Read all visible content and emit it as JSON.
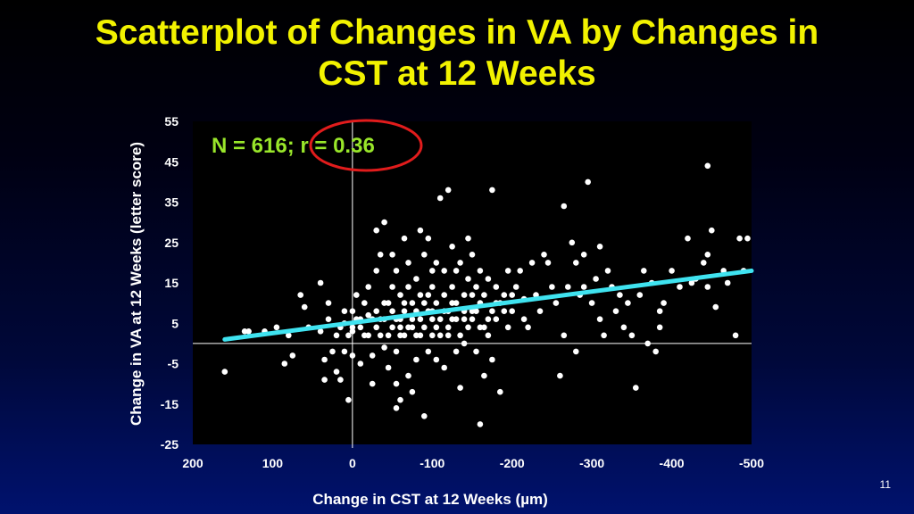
{
  "title": {
    "line1": "Scatterplot of Changes in VA by Changes in",
    "line2": "CST at 12 Weeks"
  },
  "page_number": "11",
  "colors": {
    "title": "#f2f200",
    "stat_text": "#99e62a",
    "points": "#ffffff",
    "trend_line": "#3fe3f0",
    "highlight_circle": "#e11c1c"
  },
  "chart_data": {
    "type": "scatter",
    "stat_text": "N = 616; r = 0.36",
    "highlighted_text": "r = 0.36",
    "xlabel": "Change in CST at 12 Weeks (µm)",
    "ylabel": "Change in VA at 12 Weeks (letter score)",
    "xlim": [
      200,
      -500
    ],
    "ylim": [
      -25,
      55
    ],
    "x_ticks": [
      "200",
      "100",
      "0",
      "-100",
      "-200",
      "-300",
      "-400",
      "-500"
    ],
    "y_ticks": [
      "55",
      "45",
      "35",
      "25",
      "15",
      "5",
      "-5",
      "-15",
      "-25"
    ],
    "grid": false,
    "trend_line": {
      "x": [
        160,
        -500
      ],
      "y": [
        1,
        18
      ]
    },
    "points": [
      [
        160,
        -7
      ],
      [
        135,
        3
      ],
      [
        130,
        3
      ],
      [
        110,
        3
      ],
      [
        95,
        4
      ],
      [
        85,
        -5
      ],
      [
        80,
        2
      ],
      [
        75,
        -3
      ],
      [
        65,
        12
      ],
      [
        60,
        9
      ],
      [
        55,
        4
      ],
      [
        40,
        3
      ],
      [
        40,
        15
      ],
      [
        35,
        -9
      ],
      [
        35,
        -4
      ],
      [
        30,
        10
      ],
      [
        30,
        6
      ],
      [
        25,
        -2
      ],
      [
        20,
        -7
      ],
      [
        15,
        -9
      ],
      [
        10,
        5
      ],
      [
        10,
        -2
      ],
      [
        5,
        -14
      ],
      [
        0,
        -3
      ],
      [
        0,
        3
      ],
      [
        0,
        8
      ],
      [
        -5,
        12
      ],
      [
        -10,
        6
      ],
      [
        -10,
        -5
      ],
      [
        -15,
        2
      ],
      [
        -20,
        7
      ],
      [
        -20,
        14
      ],
      [
        -25,
        -10
      ],
      [
        -25,
        -3
      ],
      [
        -30,
        18
      ],
      [
        -30,
        4
      ],
      [
        -30,
        28
      ],
      [
        -35,
        22
      ],
      [
        -35,
        6
      ],
      [
        -40,
        10
      ],
      [
        -40,
        -1
      ],
      [
        -40,
        30
      ],
      [
        -45,
        2
      ],
      [
        -45,
        -6
      ],
      [
        -50,
        14
      ],
      [
        -50,
        8
      ],
      [
        -50,
        22
      ],
      [
        -55,
        18
      ],
      [
        -55,
        -2
      ],
      [
        -55,
        -10
      ],
      [
        -55,
        -16
      ],
      [
        -60,
        6
      ],
      [
        -60,
        12
      ],
      [
        -60,
        -14
      ],
      [
        -60,
        4
      ],
      [
        -65,
        8
      ],
      [
        -65,
        26
      ],
      [
        -65,
        2
      ],
      [
        -70,
        20
      ],
      [
        -70,
        14
      ],
      [
        -70,
        -8
      ],
      [
        -75,
        4
      ],
      [
        -75,
        -12
      ],
      [
        -75,
        10
      ],
      [
        -80,
        16
      ],
      [
        -80,
        -4
      ],
      [
        -80,
        2
      ],
      [
        -85,
        6
      ],
      [
        -85,
        28
      ],
      [
        -85,
        12
      ],
      [
        -90,
        -18
      ],
      [
        -90,
        22
      ],
      [
        -90,
        4
      ],
      [
        -95,
        8
      ],
      [
        -95,
        -2
      ],
      [
        -95,
        26
      ],
      [
        -100,
        14
      ],
      [
        -100,
        18
      ],
      [
        -100,
        6
      ],
      [
        -105,
        20
      ],
      [
        -105,
        -4
      ],
      [
        -105,
        10
      ],
      [
        -110,
        36
      ],
      [
        -110,
        2
      ],
      [
        -115,
        12
      ],
      [
        -115,
        18
      ],
      [
        -115,
        -6
      ],
      [
        -120,
        38
      ],
      [
        -120,
        8
      ],
      [
        -120,
        4
      ],
      [
        -125,
        24
      ],
      [
        -125,
        14
      ],
      [
        -130,
        -2
      ],
      [
        -130,
        18
      ],
      [
        -130,
        6
      ],
      [
        -135,
        20
      ],
      [
        -135,
        -11
      ],
      [
        -140,
        12
      ],
      [
        -140,
        0
      ],
      [
        -145,
        26
      ],
      [
        -145,
        16
      ],
      [
        -145,
        4
      ],
      [
        -150,
        22
      ],
      [
        -150,
        8
      ],
      [
        -155,
        -2
      ],
      [
        -155,
        14
      ],
      [
        -160,
        18
      ],
      [
        -160,
        -20
      ],
      [
        -160,
        10
      ],
      [
        -165,
        12
      ],
      [
        -165,
        -8
      ],
      [
        -170,
        6
      ],
      [
        -170,
        16
      ],
      [
        -175,
        38
      ],
      [
        -175,
        -4
      ],
      [
        -180,
        10
      ],
      [
        -180,
        14
      ],
      [
        -185,
        -12
      ],
      [
        -190,
        12
      ],
      [
        -195,
        18
      ],
      [
        -200,
        8
      ],
      [
        -205,
        14
      ],
      [
        -210,
        18
      ],
      [
        -215,
        11
      ],
      [
        -220,
        4
      ],
      [
        -225,
        20
      ],
      [
        -230,
        12
      ],
      [
        -240,
        22
      ],
      [
        -245,
        20
      ],
      [
        -250,
        14
      ],
      [
        -255,
        10
      ],
      [
        -260,
        -8
      ],
      [
        -265,
        2
      ],
      [
        -265,
        34
      ],
      [
        -270,
        14
      ],
      [
        -275,
        25
      ],
      [
        -280,
        -2
      ],
      [
        -280,
        20
      ],
      [
        -285,
        12
      ],
      [
        -290,
        14
      ],
      [
        -290,
        22
      ],
      [
        -295,
        40
      ],
      [
        -300,
        10
      ],
      [
        -305,
        16
      ],
      [
        -310,
        24
      ],
      [
        -310,
        6
      ],
      [
        -315,
        2
      ],
      [
        -320,
        18
      ],
      [
        -325,
        14
      ],
      [
        -330,
        8
      ],
      [
        -335,
        12
      ],
      [
        -340,
        4
      ],
      [
        -350,
        2
      ],
      [
        -355,
        -11
      ],
      [
        -360,
        12
      ],
      [
        -365,
        18
      ],
      [
        -370,
        0
      ],
      [
        -380,
        -2
      ],
      [
        -385,
        4
      ],
      [
        -385,
        8
      ],
      [
        -390,
        10
      ],
      [
        -400,
        18
      ],
      [
        -410,
        14
      ],
      [
        -420,
        26
      ],
      [
        -430,
        16
      ],
      [
        -440,
        20
      ],
      [
        -445,
        22
      ],
      [
        -445,
        14
      ],
      [
        -445,
        44
      ],
      [
        -450,
        28
      ],
      [
        -455,
        9
      ],
      [
        -470,
        15
      ],
      [
        -480,
        2
      ],
      [
        -485,
        26
      ],
      [
        -490,
        18
      ],
      [
        -495,
        26
      ],
      [
        -465,
        18
      ],
      [
        -425,
        15
      ],
      [
        -375,
        15
      ],
      [
        -345,
        10
      ],
      [
        -235,
        8
      ],
      [
        -215,
        6
      ],
      [
        -195,
        4
      ],
      [
        -185,
        10
      ],
      [
        -175,
        8
      ],
      [
        -170,
        2
      ],
      [
        -160,
        4
      ],
      [
        -150,
        12
      ],
      [
        -140,
        6
      ],
      [
        -135,
        2
      ],
      [
        -125,
        10
      ],
      [
        -120,
        2
      ],
      [
        -110,
        6
      ],
      [
        -100,
        2
      ],
      [
        -95,
        12
      ],
      [
        -90,
        10
      ],
      [
        -85,
        2
      ],
      [
        -80,
        8
      ],
      [
        -75,
        6
      ],
      [
        -70,
        4
      ],
      [
        -65,
        10
      ],
      [
        -60,
        2
      ],
      [
        -55,
        6
      ],
      [
        -50,
        4
      ],
      [
        -45,
        10
      ],
      [
        -40,
        6
      ],
      [
        -35,
        2
      ],
      [
        -30,
        8
      ],
      [
        -25,
        6
      ],
      [
        -20,
        2
      ],
      [
        -15,
        10
      ],
      [
        -10,
        4
      ],
      [
        -5,
        6
      ],
      [
        0,
        4
      ],
      [
        5,
        2
      ],
      [
        10,
        8
      ],
      [
        15,
        4
      ],
      [
        20,
        2
      ],
      [
        -100,
        8
      ],
      [
        -105,
        4
      ],
      [
        -115,
        8
      ],
      [
        -125,
        6
      ],
      [
        -130,
        10
      ],
      [
        -140,
        8
      ],
      [
        -150,
        6
      ],
      [
        -155,
        8
      ],
      [
        -165,
        4
      ],
      [
        -180,
        6
      ],
      [
        -190,
        8
      ],
      [
        -200,
        12
      ]
    ]
  }
}
